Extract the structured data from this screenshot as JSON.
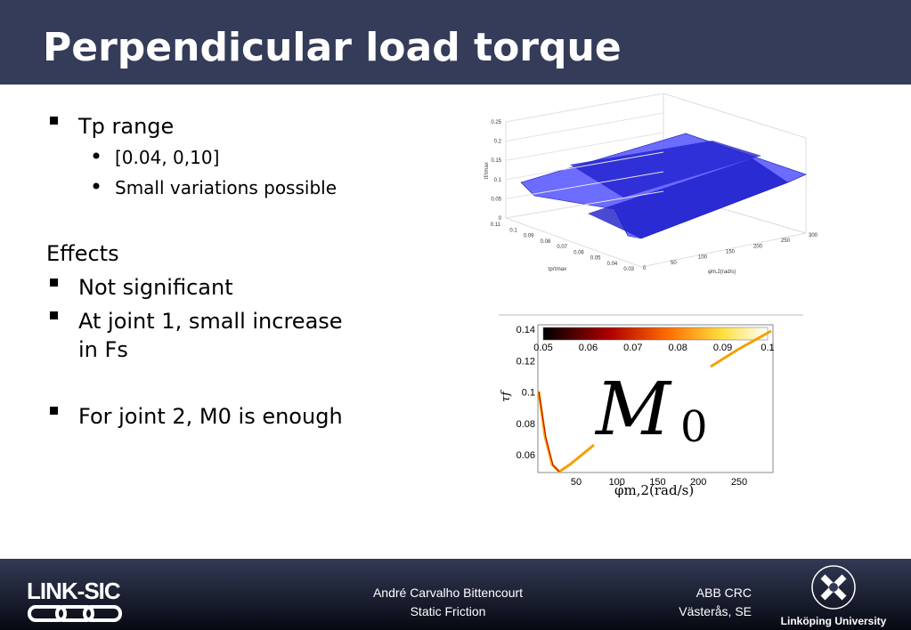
{
  "header": {
    "title": "Perpendicular load torque"
  },
  "bullets": {
    "tp_range": "Tp range",
    "tp_sub": [
      "[0.04, 0,10]",
      "Small variations possible"
    ],
    "effects": "Effects",
    "effects_items": [
      "Not significant",
      "At joint 1, small increase",
      "in Fs"
    ],
    "joint2": "For joint 2, M0 is enough"
  },
  "figure_3d": {
    "z_label": "τf/τmax",
    "y_label": "τp/τmax",
    "x_label": "φ̇m,2(rad/s)",
    "z_ticks": [
      0.25,
      0.2,
      0.15,
      0.1,
      0.05,
      0
    ],
    "y_ticks": [
      0.11,
      0.1,
      0.09,
      0.08,
      0.07,
      0.06,
      0.05,
      0.04,
      0.03
    ],
    "x_ticks": [
      0,
      50,
      100,
      150,
      200,
      250,
      300
    ]
  },
  "figure_map": {
    "colorbar_ticks": [
      0.05,
      0.06,
      0.07,
      0.08,
      0.09,
      0.1
    ],
    "y_ticks": [
      0.14,
      0.12,
      0.1,
      0.08,
      0.06
    ],
    "x_ticks": [
      50,
      100,
      150,
      200,
      250
    ],
    "y_label": "τf",
    "x_label": "φ̇m,2(rad/s)",
    "overlay": "M",
    "overlay_sub": "0"
  },
  "footer": {
    "logo": "LINK-SIC",
    "author": "André Carvalho Bittencourt",
    "topic": "Static Friction",
    "org": "ABB CRC",
    "place": "Västerås, SE",
    "university": "Linköping University"
  }
}
